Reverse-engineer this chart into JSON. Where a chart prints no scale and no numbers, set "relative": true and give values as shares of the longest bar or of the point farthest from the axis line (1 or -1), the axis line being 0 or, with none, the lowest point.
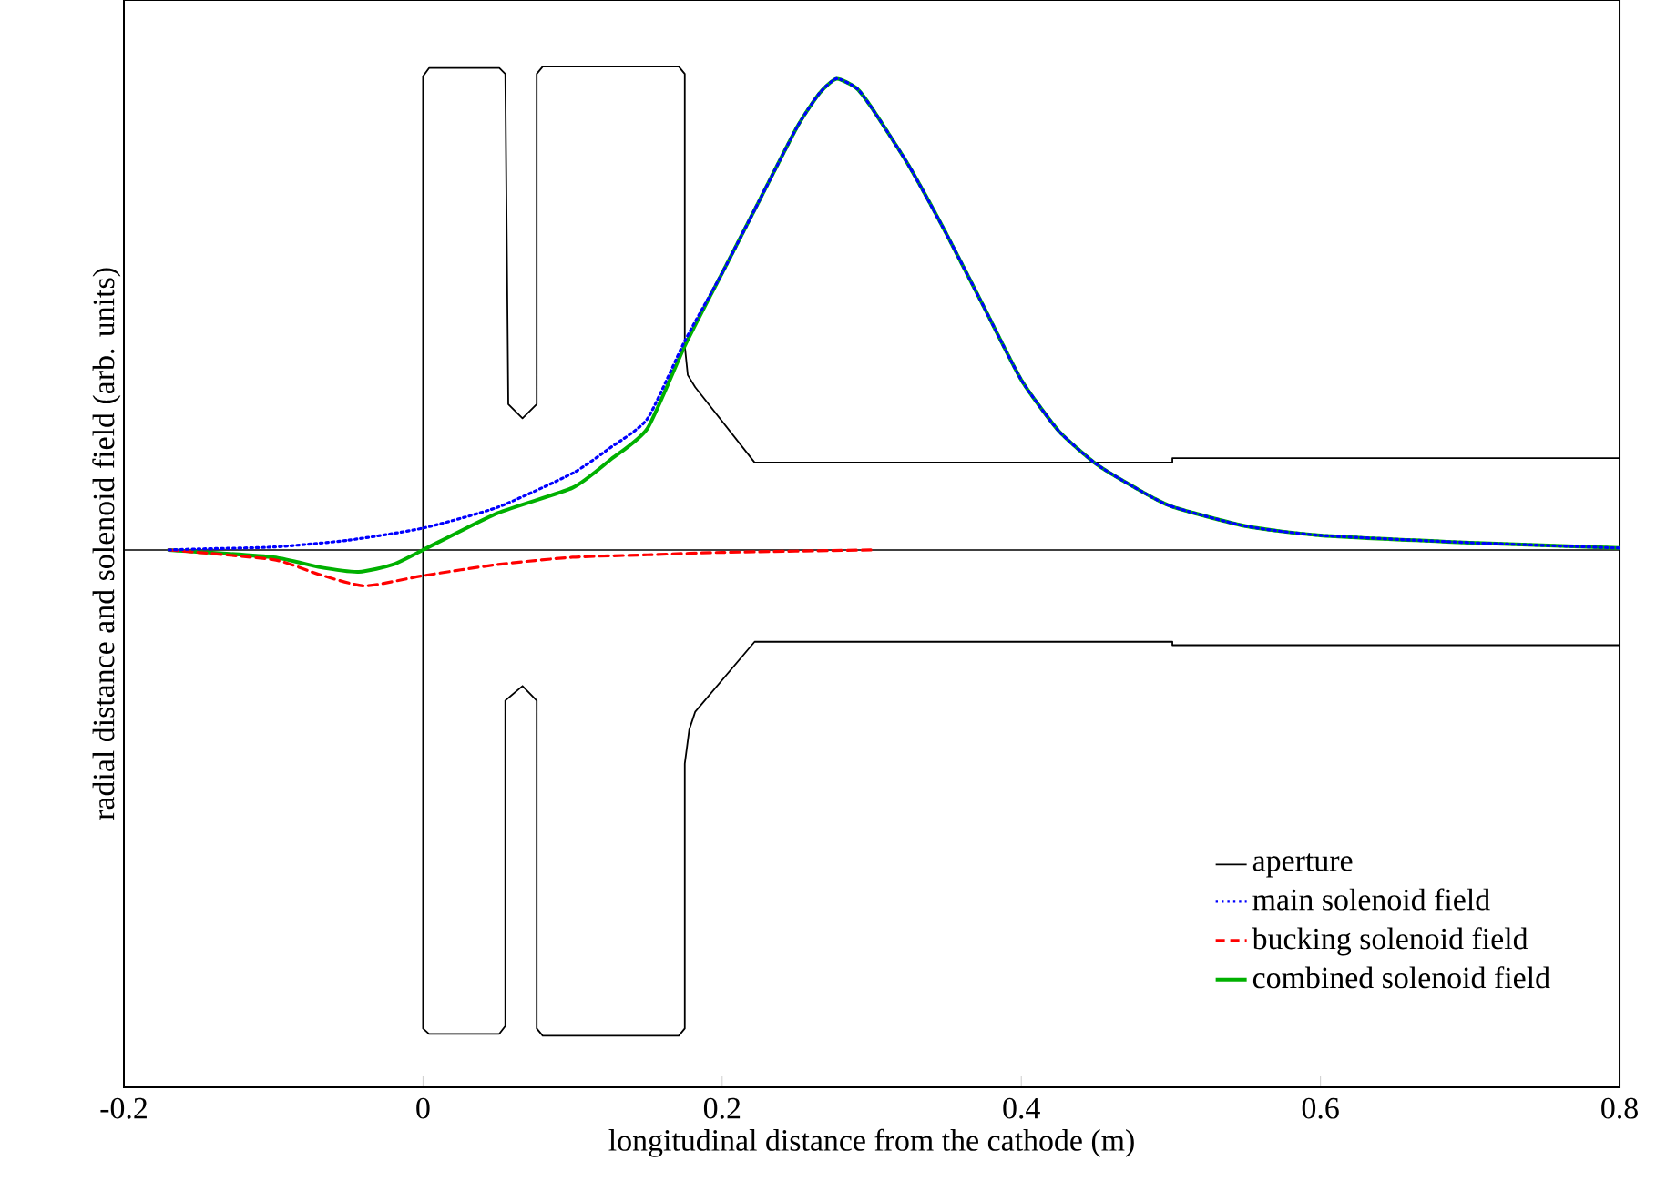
{
  "chart_data": {
    "type": "line",
    "relative": true,
    "xlabel": "longitudinal distance from the cathode (m)",
    "ylabel": "radial distance and solenoid field (arb. units)",
    "xlim": [
      -0.2,
      0.8
    ],
    "xticks": [
      {
        "value": -0.2,
        "label": "-0.2"
      },
      0,
      0.2,
      0.4,
      0.6,
      0.8
    ],
    "legend": "bottom right",
    "series": [
      {
        "name": "aperture",
        "color": "#000000",
        "line_style": "solid",
        "x": [
          0.8,
          0.501,
          0.501,
          0.2217,
          0.182,
          0.177,
          0.175,
          0.175,
          0.171,
          0.08,
          0.076,
          0.076,
          0.0665,
          0.057,
          0.055,
          0.051,
          0.004,
          0,
          0,
          0.004,
          0.051,
          0.055,
          0.055,
          0.0665,
          0.076,
          0.076,
          0.08,
          0.171,
          0.175,
          0.175,
          0.178,
          0.182,
          0.2217,
          0.501,
          0.501,
          0.8
        ],
        "values": [
          0.189,
          0.189,
          0.18,
          0.18,
          0.335,
          0.36,
          0.42,
          0.98,
          0.995,
          0.995,
          0.98,
          0.3,
          0.271,
          0.3,
          0.98,
          0.992,
          0.992,
          0.975,
          -0.985,
          -0.996,
          -0.996,
          -0.98,
          -0.31,
          -0.28,
          -0.31,
          -0.985,
          -1.0,
          -1.0,
          -0.985,
          -0.44,
          -0.37,
          -0.333,
          -0.189,
          -0.189,
          -0.196,
          -0.196
        ]
      },
      {
        "name": "main solenoid field",
        "color": "#0000ff",
        "line_style": "dotted",
        "x": [
          -0.17,
          -0.15,
          -0.1,
          -0.05,
          0,
          0.05,
          0.1,
          0.125,
          0.15,
          0.175,
          0.2,
          0.225,
          0.25,
          0.265,
          0.2765,
          0.29,
          0.3,
          0.325,
          0.35,
          0.375,
          0.4,
          0.425,
          0.45,
          0.475,
          0.5,
          0.55,
          0.6,
          0.7,
          0.8
        ],
        "values": [
          0,
          0.002,
          0.006,
          0.02,
          0.045,
          0.088,
          0.158,
          0.21,
          0.27,
          0.43,
          0.57,
          0.72,
          0.87,
          0.94,
          0.97,
          0.95,
          0.91,
          0.79,
          0.65,
          0.5,
          0.35,
          0.245,
          0.177,
          0.13,
          0.09,
          0.049,
          0.03,
          0.015,
          0.004
        ]
      },
      {
        "name": "bucking solenoid field",
        "color": "#ff0000",
        "line_style": "dashed",
        "x": [
          -0.17,
          -0.1,
          -0.07,
          -0.039,
          0,
          0.05,
          0.1,
          0.15,
          0.2,
          0.3
        ],
        "values": [
          0,
          -0.02,
          -0.05,
          -0.074,
          -0.053,
          -0.03,
          -0.015,
          -0.01,
          -0.005,
          0
        ]
      },
      {
        "name": "combined solenoid field",
        "color": "#00b000",
        "line_style": "solid",
        "x": [
          -0.17,
          -0.1,
          -0.07,
          -0.043,
          -0.02,
          0,
          0.05,
          0.1,
          0.125,
          0.15,
          0.175,
          0.2,
          0.225,
          0.25,
          0.265,
          0.2765,
          0.29,
          0.3,
          0.325,
          0.35,
          0.375,
          0.4,
          0.425,
          0.45,
          0.475,
          0.5,
          0.55,
          0.6,
          0.7,
          0.8
        ],
        "values": [
          0,
          -0.015,
          -0.035,
          -0.045,
          -0.03,
          0,
          0.076,
          0.128,
          0.185,
          0.25,
          0.42,
          0.57,
          0.72,
          0.87,
          0.94,
          0.97,
          0.95,
          0.91,
          0.79,
          0.65,
          0.5,
          0.35,
          0.245,
          0.177,
          0.13,
          0.09,
          0.049,
          0.03,
          0.015,
          0.004
        ]
      }
    ]
  }
}
